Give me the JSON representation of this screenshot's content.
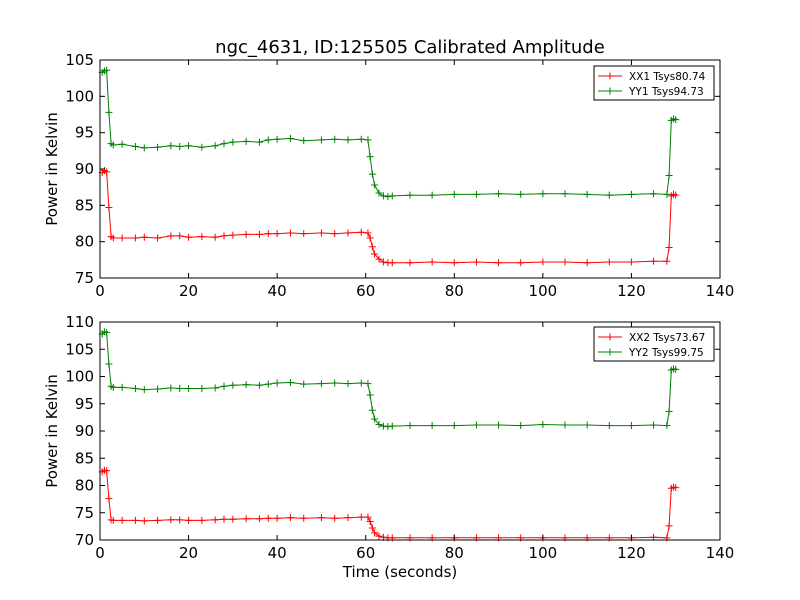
{
  "title": "ngc_4631, ID:125505 Calibrated Amplitude",
  "colors": {
    "red": "#ff0000",
    "green": "#008000"
  },
  "chart_data": [
    {
      "type": "line",
      "xlabel": "",
      "ylabel": "Power in Kelvin",
      "xlim": [
        0,
        140
      ],
      "ylim": [
        75,
        105
      ],
      "xticks": [
        0,
        20,
        40,
        60,
        80,
        100,
        120,
        140
      ],
      "yticks": [
        75,
        80,
        85,
        90,
        95,
        100,
        105
      ],
      "grid": false,
      "legend_position": "top-right",
      "marker": "+",
      "series": [
        {
          "name": "XX1 Tsys80.74",
          "color": "#ff0000",
          "x": [
            0.5,
            1,
            1.5,
            2,
            2.5,
            3,
            5,
            8,
            10,
            13,
            16,
            18,
            20,
            23,
            26,
            28,
            30,
            33,
            36,
            38,
            40,
            43,
            46,
            50,
            53,
            56,
            59,
            60.5,
            61,
            61.5,
            62,
            63,
            64,
            65,
            66,
            70,
            75,
            80,
            85,
            90,
            95,
            100,
            105,
            110,
            115,
            120,
            125,
            128,
            128.5,
            129,
            129.5,
            130
          ],
          "y": [
            89.5,
            89.8,
            89.6,
            84.7,
            80.7,
            80.5,
            80.5,
            80.5,
            80.6,
            80.5,
            80.8,
            80.8,
            80.6,
            80.7,
            80.6,
            80.8,
            80.9,
            81.0,
            81.0,
            81.1,
            81.1,
            81.2,
            81.1,
            81.2,
            81.1,
            81.2,
            81.3,
            81.2,
            80.5,
            79.3,
            78.3,
            77.6,
            77.2,
            77.1,
            77.1,
            77.1,
            77.2,
            77.1,
            77.2,
            77.1,
            77.1,
            77.2,
            77.2,
            77.1,
            77.2,
            77.2,
            77.3,
            77.3,
            79.2,
            86.3,
            86.5,
            86.4
          ]
        },
        {
          "name": "YY1 Tsys94.73",
          "color": "#008000",
          "x": [
            0.5,
            1,
            1.5,
            2,
            2.5,
            3,
            5,
            8,
            10,
            13,
            16,
            18,
            20,
            23,
            26,
            28,
            30,
            33,
            36,
            38,
            40,
            43,
            46,
            50,
            53,
            56,
            59,
            60.5,
            61,
            61.5,
            62,
            63,
            64,
            65,
            66,
            70,
            75,
            80,
            85,
            90,
            95,
            100,
            105,
            110,
            115,
            120,
            125,
            128,
            128.5,
            129,
            129.5,
            130
          ],
          "y": [
            103.3,
            103.5,
            103.6,
            97.8,
            93.5,
            93.3,
            93.4,
            93.1,
            92.9,
            93.0,
            93.2,
            93.1,
            93.2,
            93.0,
            93.2,
            93.5,
            93.7,
            93.8,
            93.7,
            94.0,
            94.1,
            94.2,
            93.9,
            94.0,
            94.1,
            94.0,
            94.1,
            94.0,
            91.7,
            89.3,
            87.8,
            86.7,
            86.3,
            86.2,
            86.3,
            86.4,
            86.4,
            86.5,
            86.5,
            86.6,
            86.5,
            86.6,
            86.6,
            86.5,
            86.4,
            86.5,
            86.6,
            86.5,
            89.1,
            96.7,
            96.9,
            96.8
          ]
        }
      ]
    },
    {
      "type": "line",
      "xlabel": "Time (seconds)",
      "ylabel": "Power in Kelvin",
      "xlim": [
        0,
        140
      ],
      "ylim": [
        70,
        110
      ],
      "xticks": [
        0,
        20,
        40,
        60,
        80,
        100,
        120,
        140
      ],
      "yticks": [
        70,
        75,
        80,
        85,
        90,
        95,
        100,
        105,
        110
      ],
      "grid": false,
      "legend_position": "top-right",
      "marker": "+",
      "series": [
        {
          "name": "XX2 Tsys73.67",
          "color": "#ff0000",
          "x": [
            0.5,
            1,
            1.5,
            2,
            2.5,
            3,
            5,
            8,
            10,
            13,
            16,
            18,
            20,
            23,
            26,
            28,
            30,
            33,
            36,
            38,
            40,
            43,
            46,
            50,
            53,
            56,
            59,
            60.5,
            61,
            61.5,
            62,
            63,
            64,
            65,
            66,
            70,
            75,
            80,
            85,
            90,
            95,
            100,
            105,
            110,
            115,
            120,
            125,
            128,
            128.5,
            129,
            129.5,
            130
          ],
          "y": [
            82.5,
            82.8,
            82.7,
            77.6,
            73.7,
            73.6,
            73.6,
            73.6,
            73.5,
            73.6,
            73.7,
            73.7,
            73.6,
            73.6,
            73.7,
            73.8,
            73.8,
            73.9,
            73.9,
            74.0,
            74.0,
            74.1,
            74.0,
            74.1,
            74.0,
            74.1,
            74.2,
            74.2,
            73.4,
            72.2,
            71.3,
            70.7,
            70.5,
            70.4,
            70.4,
            70.4,
            70.4,
            70.4,
            70.4,
            70.4,
            70.4,
            70.4,
            70.4,
            70.4,
            70.4,
            70.4,
            70.5,
            70.4,
            72.6,
            79.5,
            79.7,
            79.6
          ]
        },
        {
          "name": "YY2 Tsys99.75",
          "color": "#008000",
          "x": [
            0.5,
            1,
            1.5,
            2,
            2.5,
            3,
            5,
            8,
            10,
            13,
            16,
            18,
            20,
            23,
            26,
            28,
            30,
            33,
            36,
            38,
            40,
            43,
            46,
            50,
            53,
            56,
            59,
            60.5,
            61,
            61.5,
            62,
            63,
            64,
            65,
            66,
            70,
            75,
            80,
            85,
            90,
            95,
            100,
            105,
            110,
            115,
            120,
            125,
            128,
            128.5,
            129,
            129.5,
            130
          ],
          "y": [
            107.8,
            108.2,
            108.1,
            102.3,
            98.2,
            98.0,
            98.0,
            97.8,
            97.6,
            97.7,
            97.9,
            97.8,
            97.8,
            97.8,
            97.9,
            98.2,
            98.4,
            98.5,
            98.4,
            98.6,
            98.8,
            98.9,
            98.6,
            98.7,
            98.8,
            98.7,
            98.8,
            98.7,
            96.6,
            93.8,
            92.2,
            91.2,
            90.9,
            90.8,
            90.9,
            91.0,
            91.0,
            91.0,
            91.1,
            91.1,
            91.0,
            91.2,
            91.1,
            91.1,
            91.0,
            91.0,
            91.1,
            91.0,
            93.6,
            101.2,
            101.4,
            101.3
          ]
        }
      ]
    }
  ]
}
